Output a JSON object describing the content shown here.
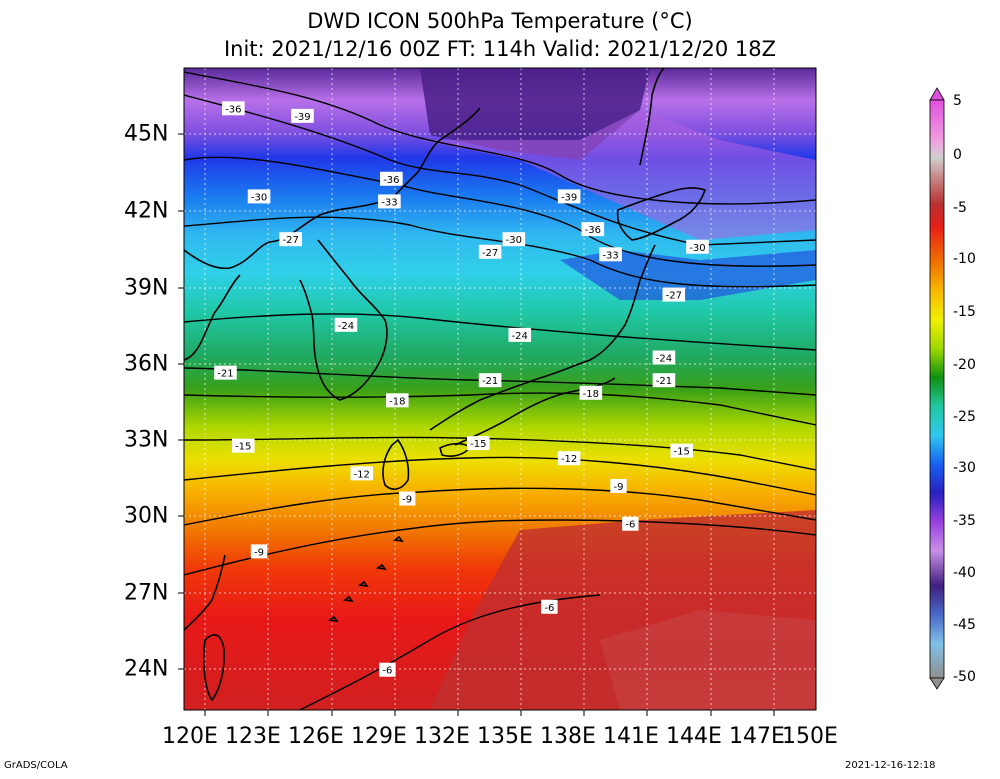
{
  "title_line1": "DWD ICON 500hPa Temperature (°C)",
  "title_line2": "Init: 2021/12/16 00Z  FT: 114h  Valid: 2021/12/20 18Z",
  "lon_labels": [
    "120E",
    "123E",
    "126E",
    "129E",
    "132E",
    "135E",
    "138E",
    "141E",
    "144E",
    "147E",
    "150E"
  ],
  "lat_labels": [
    "45N",
    "42N",
    "39N",
    "36N",
    "33N",
    "30N",
    "27N",
    "24N"
  ],
  "colorbar_labels": [
    "5",
    "0",
    "-5",
    "-10",
    "-15",
    "-20",
    "-25",
    "-30",
    "-35",
    "-40",
    "-45",
    "-50"
  ],
  "footer_left": "GrADS/COLA",
  "footer_right": "2021-12-16-12:18",
  "colors": {
    "warm": "#c02828",
    "red": "#e01818",
    "orange": "#f08000",
    "yellow": "#e8e000",
    "green": "#20a020",
    "teal": "#20c8a0",
    "cyan": "#30c8f0",
    "blue": "#1848e8",
    "violet": "#a050e0",
    "dark_purple": "#401878"
  },
  "contour_labels": [
    {
      "text": "-36",
      "lon": 120.5,
      "lat": 46.4
    },
    {
      "text": "-39",
      "lon": 124.0,
      "lat": 46.1
    },
    {
      "text": "-36",
      "lon": 128.5,
      "lat": 43.6
    },
    {
      "text": "-39",
      "lon": 137.5,
      "lat": 42.9
    },
    {
      "text": "-30",
      "lon": 121.8,
      "lat": 42.9
    },
    {
      "text": "-33",
      "lon": 128.4,
      "lat": 42.7
    },
    {
      "text": "-36",
      "lon": 138.7,
      "lat": 41.6
    },
    {
      "text": "-27",
      "lon": 123.4,
      "lat": 41.2
    },
    {
      "text": "-30",
      "lon": 134.7,
      "lat": 41.2
    },
    {
      "text": "-27",
      "lon": 133.5,
      "lat": 40.7
    },
    {
      "text": "-33",
      "lon": 139.6,
      "lat": 40.6
    },
    {
      "text": "-30",
      "lon": 144.0,
      "lat": 40.9
    },
    {
      "text": "-27",
      "lon": 142.8,
      "lat": 39.0
    },
    {
      "text": "-24",
      "lon": 126.2,
      "lat": 37.8
    },
    {
      "text": "-24",
      "lon": 135.0,
      "lat": 37.4
    },
    {
      "text": "-24",
      "lon": 142.3,
      "lat": 36.5
    },
    {
      "text": "-21",
      "lon": 120.1,
      "lat": 35.9
    },
    {
      "text": "-21",
      "lon": 133.5,
      "lat": 35.6
    },
    {
      "text": "-21",
      "lon": 142.3,
      "lat": 35.6
    },
    {
      "text": "-18",
      "lon": 128.8,
      "lat": 34.8
    },
    {
      "text": "-18",
      "lon": 138.6,
      "lat": 35.1
    },
    {
      "text": "-15",
      "lon": 121.0,
      "lat": 33.0
    },
    {
      "text": "-15",
      "lon": 132.9,
      "lat": 33.1
    },
    {
      "text": "-15",
      "lon": 143.2,
      "lat": 32.8
    },
    {
      "text": "-12",
      "lon": 137.5,
      "lat": 32.5
    },
    {
      "text": "-12",
      "lon": 127.0,
      "lat": 31.9
    },
    {
      "text": "-9",
      "lon": 129.3,
      "lat": 30.9
    },
    {
      "text": "-9",
      "lon": 140.0,
      "lat": 31.4
    },
    {
      "text": "-6",
      "lon": 140.6,
      "lat": 29.9
    },
    {
      "text": "-9",
      "lon": 121.8,
      "lat": 28.8
    },
    {
      "text": "-6",
      "lon": 136.5,
      "lat": 26.6
    },
    {
      "text": "-6",
      "lon": 128.3,
      "lat": 24.1
    }
  ]
}
